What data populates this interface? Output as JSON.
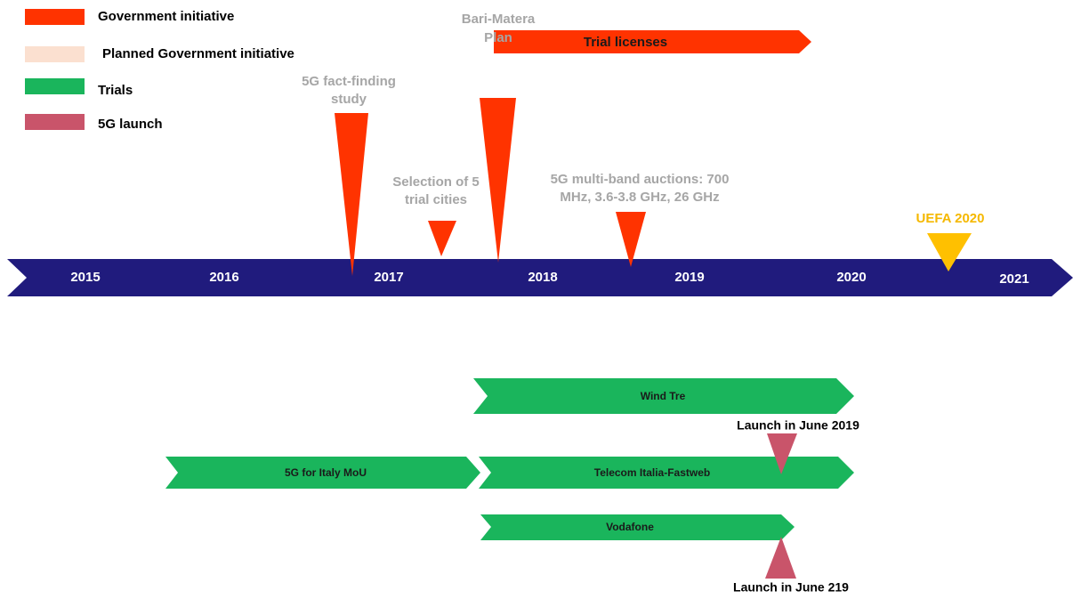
{
  "legend": [
    {
      "label": "Government initiative"
    },
    {
      "label": "Planned Government initiative"
    },
    {
      "label": "Trials"
    },
    {
      "label": "5G launch"
    }
  ],
  "timeline": {
    "years": [
      "2015",
      "2016",
      "2017",
      "2018",
      "2019",
      "2020",
      "2021"
    ]
  },
  "events": [
    {
      "lines": [
        "5G fact-finding",
        "study"
      ]
    },
    {
      "lines": [
        "Selection of 5",
        "trial cities"
      ]
    },
    {
      "lines": [
        "Bari-Matera",
        "Plan"
      ]
    },
    {
      "lines": [
        "5G multi-band auctions: 700",
        "MHz, 3.6-3.8 GHz, 26 GHz"
      ]
    },
    {
      "lines": [
        "UEFA 2020"
      ]
    }
  ],
  "trial_licenses": "Trial licenses",
  "trials": [
    "Wind Tre",
    "5G for Italy MoU",
    "Telecom Italia-Fastweb",
    "Vodafone"
  ],
  "launches": [
    "Launch in June 2019",
    "Launch in June 219"
  ]
}
